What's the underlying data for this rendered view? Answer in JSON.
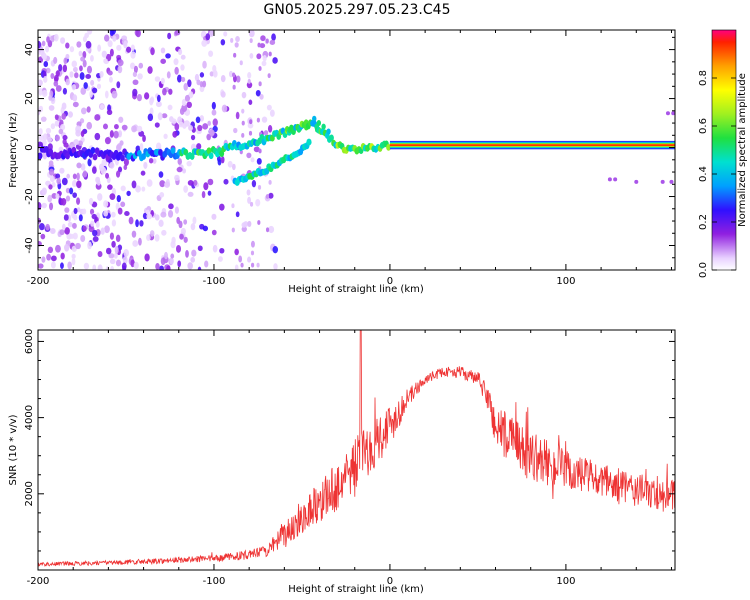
{
  "title": "GN05.2025.297.05.23.C45",
  "chart_data": [
    {
      "type": "heatmap",
      "xlabel": "Height of straight line (km)",
      "ylabel": "Frequency (Hz)",
      "xlim": [
        -200,
        162
      ],
      "ylim": [
        -50,
        48
      ],
      "x_ticks": [
        -200,
        -100,
        0,
        100
      ],
      "x_tick_labels": [
        "-200",
        "-100",
        "0",
        "100"
      ],
      "y_ticks": [
        -40,
        -20,
        0,
        20,
        40
      ],
      "y_tick_labels": [
        "-40",
        "-20",
        "0",
        "20",
        "40"
      ],
      "colorbar": {
        "label": "Normalized spectral amplitude",
        "range": [
          0,
          1
        ],
        "ticks": [
          0,
          0.2,
          0.4,
          0.6,
          0.8
        ],
        "tick_labels": [
          "0.0",
          "0.2",
          "0.4",
          "0.6",
          "0.8"
        ]
      },
      "features": [
        {
          "name": "noise",
          "x_range": [
            -200,
            -70
          ],
          "freq_range": [
            -50,
            48
          ],
          "amplitude": 0.05
        },
        {
          "name": "main-trace",
          "points": [
            [
              -200,
              -2
            ],
            [
              -150,
              -3
            ],
            [
              -100,
              -2
            ],
            [
              -80,
              2
            ],
            [
              -60,
              6
            ],
            [
              -45,
              10
            ],
            [
              -35,
              4
            ],
            [
              -25,
              -1
            ],
            [
              -10,
              0
            ],
            [
              0,
              1
            ],
            [
              162,
              1
            ]
          ],
          "amplitude": [
            0.15,
            0.95
          ]
        },
        {
          "name": "lower-branch",
          "points": [
            [
              -88,
              -14
            ],
            [
              -70,
              -9
            ],
            [
              -60,
              -5
            ],
            [
              -50,
              -1
            ],
            [
              -45,
              3
            ]
          ],
          "amplitude": 0.45
        },
        {
          "name": "steady-carrier",
          "x_range": [
            0,
            162
          ],
          "freq": 1,
          "amplitude": 0.95
        }
      ]
    },
    {
      "type": "line",
      "xlabel": "Height of straight line (km)",
      "ylabel": "SNR (10 * v/v)",
      "xlim": [
        -200,
        162
      ],
      "ylim": [
        0,
        6300
      ],
      "x_ticks": [
        -200,
        -100,
        0,
        100
      ],
      "x_tick_labels": [
        "-200",
        "-100",
        "0",
        "100"
      ],
      "y_ticks": [
        2000,
        4000,
        6000
      ],
      "y_tick_labels": [
        "2000",
        "4000",
        "6000"
      ],
      "color": "#ee3333",
      "envelope": {
        "x": [
          -200,
          -150,
          -100,
          -80,
          -70,
          -60,
          -50,
          -40,
          -30,
          -25,
          -20,
          -15,
          -10,
          0,
          10,
          20,
          30,
          40,
          50,
          55,
          60,
          70,
          80,
          100,
          120,
          140,
          162
        ],
        "base": [
          150,
          200,
          300,
          400,
          500,
          900,
          1400,
          1800,
          2200,
          2500,
          2700,
          3000,
          3300,
          3800,
          4500,
          5000,
          5200,
          5200,
          5000,
          4600,
          3800,
          3300,
          3000,
          2600,
          2300,
          2100,
          1900
        ],
        "amplitude": [
          100,
          120,
          180,
          250,
          300,
          700,
          900,
          1100,
          1300,
          1500,
          1600,
          1500,
          1400,
          1200,
          500,
          250,
          250,
          300,
          400,
          600,
          1300,
          1400,
          1300,
          1100,
          1000,
          900,
          900
        ]
      },
      "spike": {
        "x": -16.5,
        "value": 6300
      }
    }
  ]
}
